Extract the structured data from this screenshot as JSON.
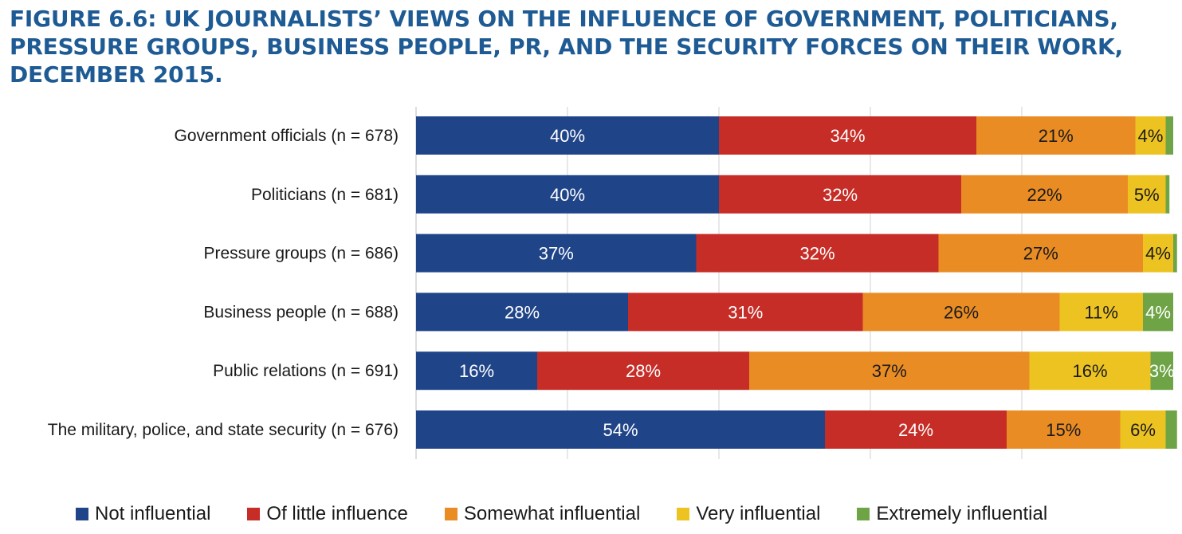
{
  "title": "FIGURE 6.6: UK JOURNALISTS’ VIEWS ON THE INFLUENCE OF GOVERNMENT, POLITICIANS, PRESSURE GROUPS, BUSINESS PEOPLE, PR, AND THE SECURITY FORCES ON THEIR WORK, DECEMBER 2015.",
  "chart_data": {
    "type": "bar",
    "orientation": "horizontal",
    "stacked": true,
    "title": "FIGURE 6.6: UK JOURNALISTS’ VIEWS ON THE INFLUENCE OF GOVERNMENT, POLITICIANS, PRESSURE GROUPS, BUSINESS PEOPLE, PR, AND THE SECURITY FORCES ON THEIR WORK, DECEMBER 2015.",
    "xlabel": "",
    "ylabel": "",
    "xlim": [
      0,
      100
    ],
    "grid": true,
    "legend": "bottom",
    "categories": [
      "Government officials (n = 678)",
      "Politicians (n = 681)",
      "Pressure groups (n = 686)",
      "Business people (n = 688)",
      "Public relations (n = 691)",
      "The military, police, and state security (n = 676)"
    ],
    "series": [
      {
        "name": "Not influential",
        "color": "#1f4488",
        "values": [
          40,
          40,
          37,
          28,
          16,
          54
        ],
        "labels": [
          "40%",
          "40%",
          "37%",
          "28%",
          "16%",
          "54%"
        ]
      },
      {
        "name": "Of little influence",
        "color": "#c62d27",
        "values": [
          34,
          32,
          32,
          31,
          28,
          24
        ],
        "labels": [
          "34%",
          "32%",
          "32%",
          "31%",
          "28%",
          "24%"
        ]
      },
      {
        "name": "Somewhat influential",
        "color": "#e98c24",
        "values": [
          21,
          22,
          27,
          26,
          37,
          15
        ],
        "labels": [
          "21%",
          "22%",
          "27%",
          "26%",
          "37%",
          "15%"
        ]
      },
      {
        "name": "Very influential",
        "color": "#edc322",
        "values": [
          4,
          5,
          4,
          11,
          16,
          6
        ],
        "labels": [
          "4%",
          "5%",
          "4%",
          "11%",
          "16%",
          "6%"
        ]
      },
      {
        "name": "Extremely influential",
        "color": "#6ea446",
        "values": [
          1,
          0.5,
          0.5,
          4,
          3,
          1.5
        ],
        "labels": [
          "",
          "",
          "",
          "4%",
          "3%",
          ""
        ]
      }
    ]
  }
}
